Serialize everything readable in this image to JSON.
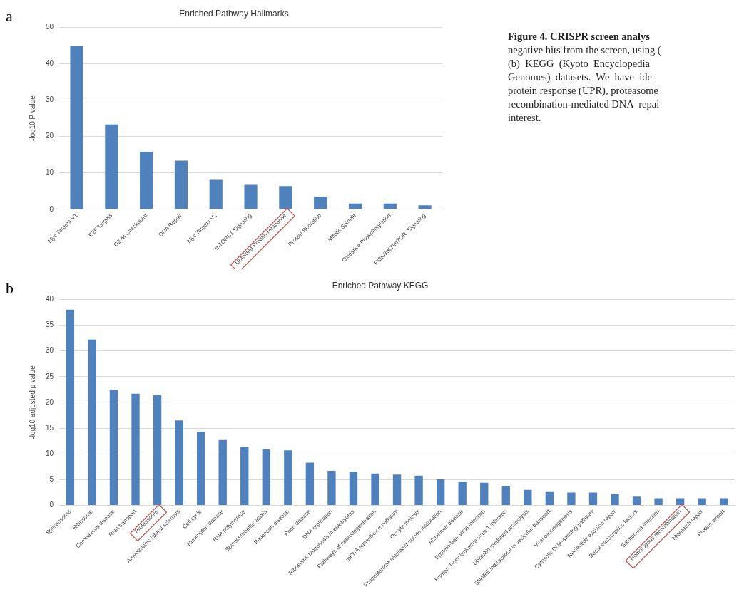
{
  "chart_data": [
    {
      "type": "bar",
      "title": "Enriched Pathway Hallmarks",
      "ylabel": "-log10 P value",
      "categories": [
        "Myc Targets V1",
        "E2F Targets",
        "G2-M Checkpoint",
        "DNA Repair",
        "Myc Targets V2",
        "mTORC1 Signaling",
        "Unfolded Protein Response",
        "Protein Secretion",
        "Mitotic Spindle",
        "Oxidative Phosphorylation",
        "PI3K/AKT/mTOR  Signaling"
      ],
      "values": [
        45,
        23.3,
        15.8,
        13.4,
        8.1,
        6.7,
        6.4,
        3.5,
        1.6,
        1.6,
        1.1
      ],
      "color": "#4f81bd",
      "ylim": [
        0,
        50
      ],
      "yticks": [
        0,
        10,
        20,
        30,
        40,
        50
      ],
      "grid": "y",
      "legend": false,
      "annotations": [
        "a",
        "Figure 4. CRISPR screen analys",
        "negative hits from the screen, using (",
        "(b)  KEGG  (Kyoto  Encyclopedia",
        "Genomes)  datasets.  We  have  ide",
        "protein response (UPR), proteasome",
        "recombination-mediated DNA  repai",
        "interest."
      ]
    },
    {
      "type": "bar",
      "title": "Enriched Pathway KEGG",
      "ylabel": "-log10 adjusted p value",
      "categories": [
        "Spliceosome",
        "Ribosome",
        "Coronavirus disease",
        "RNA transport",
        "Proteasome",
        "Amyotrophic lateral sclerosis",
        "Cell cycle",
        "Huntington disease",
        "RNA polymerase",
        "Spinocerebellar ataxia",
        "Parkinson disease",
        "Prion disease",
        "DNA replication",
        "Ribosome biogenesis in eukaryotes",
        "Pathways of neurodegeneration",
        "mRNA surveillance pathway",
        "Oocyte meiosis",
        "Progesterone-mediated oocyte maturation",
        "Alzheimer disease",
        "Epstein-Barr virus infection",
        "Human T-cell leukemia virus 1 infection",
        "Ubiquitin mediated proteolysis",
        "SNARE interactions in vesicular transport",
        "Viral carcinogenesis",
        "Cytosolic DNA-sensing pathway",
        "Nucleotide excision repair",
        "Basal transcription factors",
        "Salmonella infection",
        "Homologous recombination",
        "Mismatch repair",
        "Protein export"
      ],
      "values": [
        38,
        32.2,
        22.4,
        21.7,
        21.4,
        16.5,
        14.3,
        12.7,
        11.3,
        10.9,
        10.7,
        8.3,
        6.7,
        6.5,
        6.2,
        6.0,
        5.8,
        5.1,
        4.6,
        4.4,
        3.7,
        3.0,
        2.6,
        2.5,
        2.5,
        2.2,
        1.7,
        1.4,
        1.4,
        1.4,
        1.4
      ],
      "color": "#4f81bd",
      "ylim": [
        0,
        40
      ],
      "yticks": [
        0,
        5,
        10,
        15,
        20,
        25,
        30,
        35,
        40
      ],
      "grid": "y",
      "legend": false,
      "annotations": [
        "b"
      ]
    }
  ]
}
